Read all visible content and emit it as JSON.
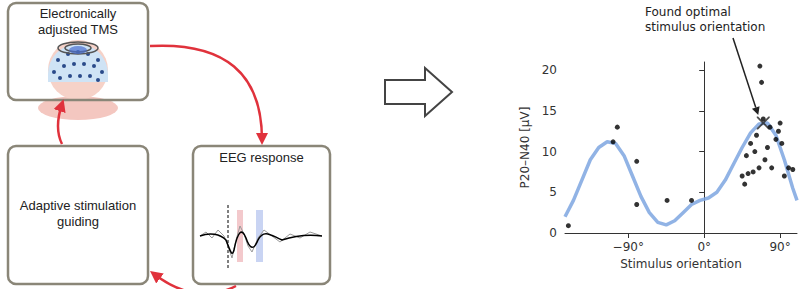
{
  "diagram": {
    "nodes": [
      {
        "label": "Electronically adjusted TMS"
      },
      {
        "label": "EEG response"
      },
      {
        "label": "Adaptive stimulation guiding"
      }
    ]
  },
  "chart_data": {
    "type": "scatter",
    "xlabel": "Stimulus orientation",
    "ylabel": "P20–N40 [µV]",
    "xlim": [
      -165,
      110
    ],
    "ylim": [
      0,
      21
    ],
    "xticks": [
      {
        "value": -90,
        "label": "−90°"
      },
      {
        "value": 0,
        "label": "0°"
      },
      {
        "value": 90,
        "label": "90°"
      }
    ],
    "yticks": [
      0,
      5,
      10,
      15,
      20
    ],
    "grid": false,
    "series": [
      {
        "type": "scatter",
        "color": "#000000",
        "marker": "circle",
        "x": [
          -161,
          -108,
          -103,
          -80,
          -80,
          -44,
          -15,
          45,
          48,
          50,
          52,
          55,
          58,
          60,
          62,
          65,
          66,
          68,
          70,
          72,
          75,
          78,
          80,
          85,
          88,
          90,
          92,
          95,
          100,
          105
        ],
        "values": [
          0.9,
          11.2,
          13,
          8.8,
          3.5,
          4,
          4,
          7,
          6,
          9.5,
          7.3,
          11,
          7.5,
          10,
          12,
          8,
          20.5,
          18.5,
          14,
          9,
          10.5,
          13,
          8,
          11.5,
          12.5,
          13.5,
          11,
          7,
          8,
          7.8
        ]
      },
      {
        "type": "line",
        "color": "#7ea6e0",
        "line_style": "solid",
        "x": [
          -165,
          -155,
          -145,
          -135,
          -125,
          -115,
          -105,
          -95,
          -85,
          -75,
          -65,
          -55,
          -45,
          -35,
          -25,
          -15,
          -5,
          5,
          15,
          25,
          35,
          45,
          55,
          65,
          75,
          85,
          95,
          105,
          110
        ],
        "values": [
          2,
          4,
          6.5,
          9,
          10.5,
          11.2,
          11,
          9.5,
          7,
          4.5,
          2.5,
          1.3,
          1,
          1.5,
          2.5,
          3.5,
          4,
          4.3,
          5,
          6.5,
          8.5,
          10.5,
          12.3,
          13.4,
          13.5,
          12,
          9,
          5.5,
          4
        ]
      }
    ],
    "annotations": [
      {
        "text": "Found optimal stimulus orientation",
        "x": 70,
        "y": 13.5,
        "marker": "x"
      }
    ]
  }
}
